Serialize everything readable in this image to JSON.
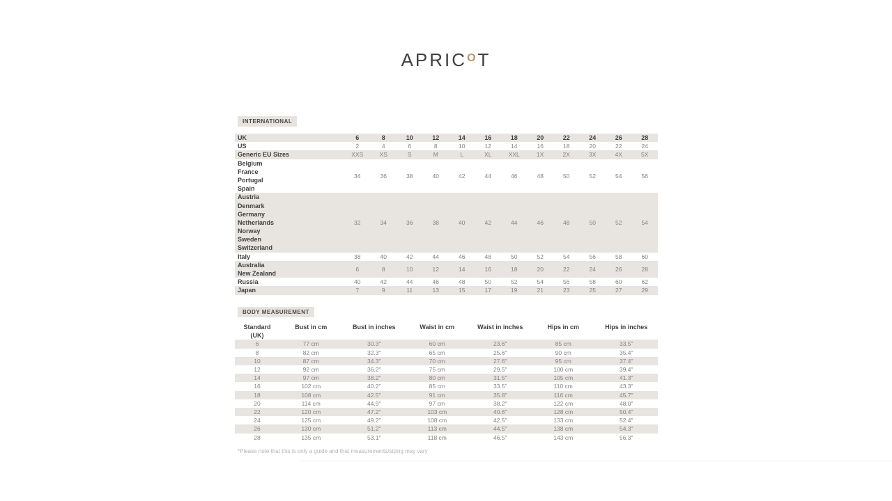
{
  "logo": {
    "prefix": "APRIC",
    "o": "O",
    "suffix": "T",
    "o_color": "#b5956b"
  },
  "colors": {
    "stripe": "#e8e4e0",
    "badge_bg": "#e7e3df",
    "label_text": "#3f3f3f",
    "value_text": "#828282",
    "logo_text": "#3e4042",
    "logo_o": "#b5956b"
  },
  "international": {
    "label": "INTERNATIONAL",
    "rows": [
      {
        "labels": [
          "UK"
        ],
        "values": [
          "6",
          "8",
          "10",
          "12",
          "14",
          "16",
          "18",
          "20",
          "22",
          "24",
          "26",
          "28"
        ],
        "striped": true,
        "bold_values": true
      },
      {
        "labels": [
          "US"
        ],
        "values": [
          "2",
          "4",
          "6",
          "8",
          "10",
          "12",
          "14",
          "16",
          "18",
          "20",
          "22",
          "24"
        ],
        "striped": false,
        "bold_values": false
      },
      {
        "labels": [
          "Generic EU Sizes"
        ],
        "values": [
          "XXS",
          "XS",
          "S",
          "M",
          "L",
          "XL",
          "XXL",
          "1X",
          "2X",
          "3X",
          "4X",
          "5X"
        ],
        "striped": true,
        "bold_values": false
      },
      {
        "labels": [
          "Belgium",
          "France",
          "Portugal",
          "Spain"
        ],
        "values": [
          "34",
          "36",
          "38",
          "40",
          "42",
          "44",
          "46",
          "48",
          "50",
          "52",
          "54",
          "56"
        ],
        "striped": false,
        "bold_values": false
      },
      {
        "labels": [
          "Austria",
          "Denmark",
          "Germany",
          "Netherlands",
          "Norway",
          "Sweden",
          "Switzerland"
        ],
        "values": [
          "32",
          "34",
          "36",
          "38",
          "40",
          "42",
          "44",
          "46",
          "48",
          "50",
          "52",
          "54"
        ],
        "striped": true,
        "bold_values": false
      },
      {
        "labels": [
          "Italy"
        ],
        "values": [
          "38",
          "40",
          "42",
          "44",
          "46",
          "48",
          "50",
          "52",
          "54",
          "56",
          "58",
          "60"
        ],
        "striped": false,
        "bold_values": false
      },
      {
        "labels": [
          "Australia",
          "New Zealand"
        ],
        "values": [
          "6",
          "8",
          "10",
          "12",
          "14",
          "16",
          "18",
          "20",
          "22",
          "24",
          "26",
          "28"
        ],
        "striped": true,
        "bold_values": false
      },
      {
        "labels": [
          "Russia"
        ],
        "values": [
          "40",
          "42",
          "44",
          "46",
          "48",
          "50",
          "52",
          "54",
          "56",
          "58",
          "60",
          "62"
        ],
        "striped": false,
        "bold_values": false
      },
      {
        "labels": [
          "Japan"
        ],
        "values": [
          "7",
          "9",
          "11",
          "13",
          "15",
          "17",
          "19",
          "21",
          "23",
          "25",
          "27",
          "29"
        ],
        "striped": true,
        "bold_values": false
      }
    ]
  },
  "body_measurement": {
    "label": "BODY MEASUREMENT",
    "headers": [
      [
        "Standard",
        "(UK)"
      ],
      [
        "Bust in cm"
      ],
      [
        "Bust in inches"
      ],
      [
        "Waist in cm"
      ],
      [
        "Waist in inches"
      ],
      [
        "Hips in cm"
      ],
      [
        "Hips in inches"
      ]
    ],
    "rows": [
      [
        "6",
        "77 cm",
        "30.3\"",
        "60 cm",
        "23.6\"",
        "85 cm",
        "33.5\""
      ],
      [
        "8",
        "82 cm",
        "32.3\"",
        "65 cm",
        "25.6\"",
        "90 cm",
        "35.4\""
      ],
      [
        "10",
        "87 cm",
        "34.3\"",
        "70 cm",
        "27.6\"",
        "95 cm",
        "37.4\""
      ],
      [
        "12",
        "92 cm",
        "36.2\"",
        "75 cm",
        "29.5\"",
        "100 cm",
        "39.4\""
      ],
      [
        "14",
        "97 cm",
        "38.2\"",
        "80 cm",
        "31.5\"",
        "105 cm",
        "41.3\""
      ],
      [
        "16",
        "102 cm",
        "40.2\"",
        "85 cm",
        "33.5\"",
        "110 cm",
        "43.3\""
      ],
      [
        "18",
        "108 cm",
        "42.5\"",
        "91 cm",
        "35.8\"",
        "116 cm",
        "45.7\""
      ],
      [
        "20",
        "114 cm",
        "44.9\"",
        "97 cm",
        "38.2\"",
        "122 cm",
        "48.0\""
      ],
      [
        "22",
        "120 cm",
        "47.2\"",
        "103 cm",
        "40.6\"",
        "128 cm",
        "50.4\""
      ],
      [
        "24",
        "125 cm",
        "49.2\"",
        "108 cm",
        "42.5\"",
        "133 cm",
        "52.4\""
      ],
      [
        "26",
        "130 cm",
        "51.2\"",
        "113 cm",
        "44.5\"",
        "138 cm",
        "54.3\""
      ],
      [
        "28",
        "135 cm",
        "53.1\"",
        "118 cm",
        "46.5\"",
        "143 cm",
        "56.3\""
      ]
    ]
  },
  "footnote": "*Please note that this is only a guide and that measurements/sizing may vary"
}
